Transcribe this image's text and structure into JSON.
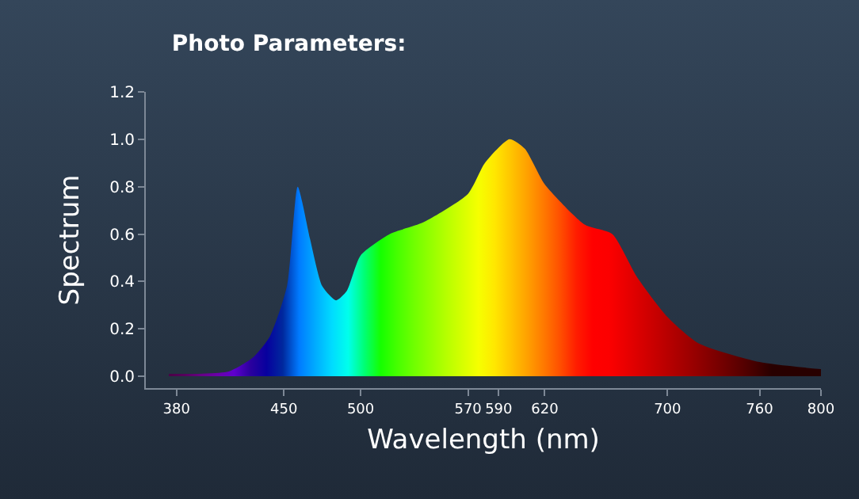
{
  "chart_data": {
    "type": "area",
    "title": "Photo Parameters:",
    "xlabel": "Wavelength (nm)",
    "ylabel": "Spectrum",
    "x": [
      375,
      414,
      430,
      441,
      452,
      459,
      467,
      475,
      484,
      491,
      500,
      519,
      541,
      570,
      581,
      597,
      607,
      620,
      646,
      664,
      680,
      700,
      720,
      760,
      800
    ],
    "series": [
      {
        "values": [
          0.01,
          0.02,
          0.08,
          0.17,
          0.38,
          0.8,
          0.58,
          0.38,
          0.32,
          0.36,
          0.51,
          0.6,
          0.65,
          0.77,
          0.9,
          1.0,
          0.96,
          0.81,
          0.64,
          0.6,
          0.42,
          0.25,
          0.14,
          0.06,
          0.03
        ]
      }
    ],
    "xlim": [
      360,
      800
    ],
    "xticks": [
      380,
      450,
      500,
      570,
      590,
      620,
      700,
      760,
      800
    ],
    "ylim": [
      -0.05,
      1.2
    ],
    "yticks": [
      {
        "value": 0,
        "label": "0.0"
      },
      {
        "value": 0.2,
        "label": "0.2"
      },
      {
        "value": 0.4,
        "label": "0.4"
      },
      {
        "value": 0.6,
        "label": "0.6"
      },
      {
        "value": 0.8,
        "label": "0.8"
      },
      {
        "value": 1,
        "label": "1.0"
      },
      {
        "value": 1.2,
        "label": "1.2"
      }
    ],
    "grid": false
  }
}
